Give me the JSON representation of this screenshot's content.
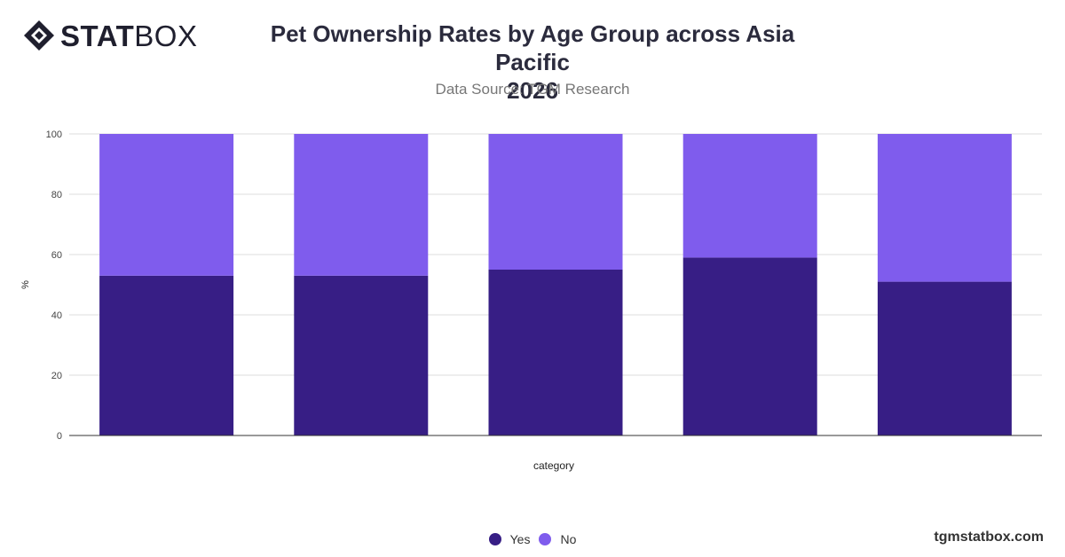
{
  "brand": {
    "logo_bold": "STAT",
    "logo_light": "BOX"
  },
  "header": {
    "title": "Pet Ownership Rates by Age Group across Asia Pacific 2026",
    "subtitle": "Data Source: TGM Research"
  },
  "footer": {
    "watermark": "tgmstatbox.com"
  },
  "colors": {
    "yes": "#371e85",
    "no": "#7f5ced",
    "grid": "#dddddd",
    "axis": "#333333"
  },
  "chart_data": {
    "type": "bar",
    "stacked": true,
    "categories": [
      "",
      "",
      "",
      "",
      ""
    ],
    "series": [
      {
        "name": "Yes",
        "values": [
          53,
          53,
          55,
          59,
          51
        ]
      },
      {
        "name": "No",
        "values": [
          47,
          47,
          45,
          41,
          49
        ]
      }
    ],
    "xlabel": "category",
    "ylabel": "%",
    "ylim": [
      0,
      100
    ],
    "yticks": [
      0,
      20,
      40,
      60,
      80,
      100
    ],
    "grid": true,
    "legend": "bottom-center"
  }
}
